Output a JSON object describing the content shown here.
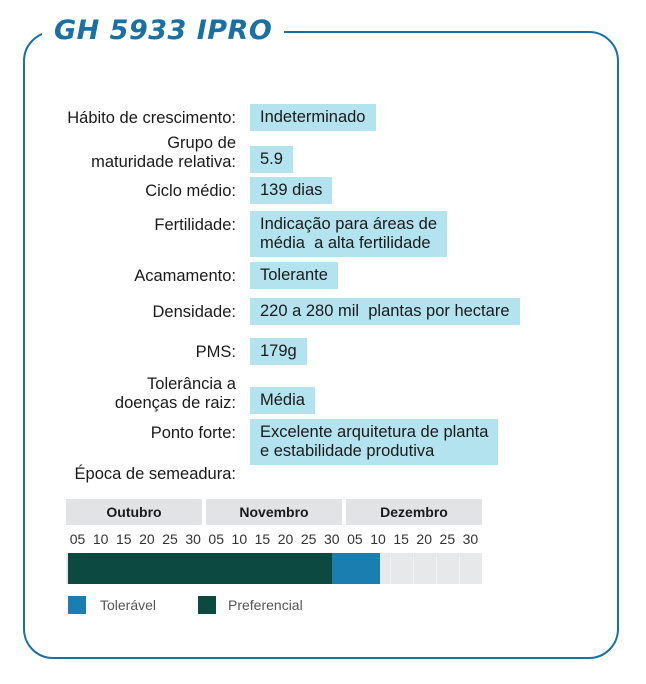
{
  "title": "GH 5933 IPRO",
  "specs": [
    {
      "label": "Hábito de crescimento:",
      "value": "Indeterminado"
    },
    {
      "label": "Grupo de\nmaturidade relativa:",
      "value": "5.9"
    },
    {
      "label": "Ciclo médio:",
      "value": "139 dias"
    },
    {
      "label": "Fertilidade:",
      "value": "Indicação para áreas de\nmédia  a alta fertilidade"
    },
    {
      "label": "Acamamento:",
      "value": "Tolerante"
    },
    {
      "label": "Densidade:",
      "value": "220 a 280 mil  plantas por hectare"
    },
    {
      "label": "PMS:",
      "value": "179g"
    },
    {
      "label": "Tolerância a\ndoenças de raiz:",
      "value": "Média"
    },
    {
      "label": "Ponto forte:",
      "value": "Excelente arquitetura de planta\ne estabilidade produtiva"
    }
  ],
  "season_label": "Época de semeadura:",
  "months": [
    "Outubro",
    "Novembro",
    "Dezembro"
  ],
  "days": [
    "05",
    "10",
    "15",
    "20",
    "25",
    "30"
  ],
  "sowing": {
    "preferencial": {
      "start_month": "Outubro",
      "start_day": 5,
      "end_month": "Novembro",
      "end_day": 30
    },
    "toleravel": {
      "start_month": "Novembro",
      "start_day": 30,
      "end_month": "Dezembro",
      "end_day": 10
    }
  },
  "legend": {
    "toleravel": "Tolerável",
    "preferencial": "Preferencial"
  },
  "colors": {
    "accent": "#1a6fa3",
    "value_bg": "#b3e3ef",
    "preferencial": "#0c4940",
    "toleravel": "#1b7eb1",
    "month_bg": "#e2e3e4"
  }
}
